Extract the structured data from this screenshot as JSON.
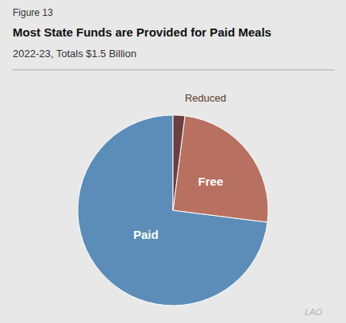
{
  "chart_data": {
    "type": "pie",
    "title": "Most State Funds are Provided for Paid Meals",
    "subtitle": "2022-23, Totals $1.5 Billion",
    "annotations": [
      "Figure 13",
      "LAO"
    ],
    "categories": [
      "Paid",
      "Free",
      "Reduced"
    ],
    "values": [
      73.0,
      25.0,
      2.0
    ],
    "colors": [
      "#5b8db8",
      "#b87060",
      "#6b4040"
    ]
  }
}
